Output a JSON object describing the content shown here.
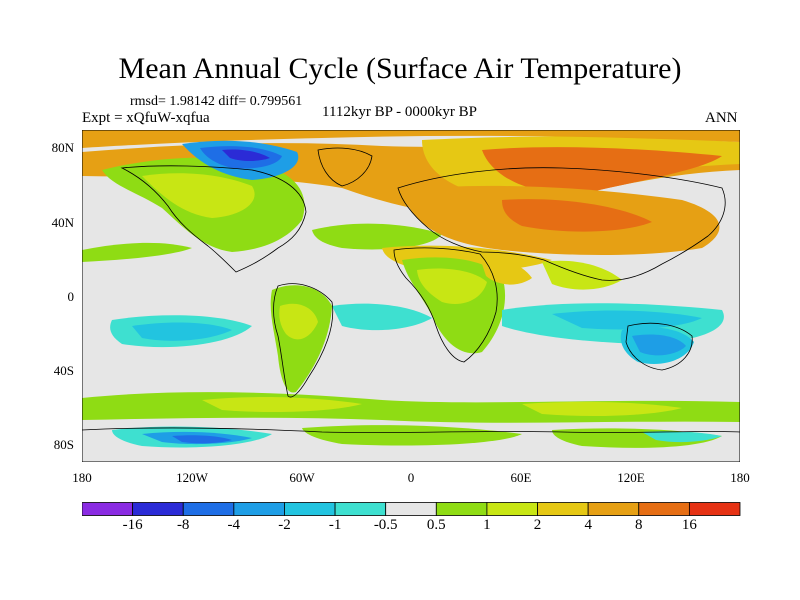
{
  "title": "Mean Annual Cycle (Surface Air Temperature)",
  "stats": "rmsd= 1.98142 diff= 0.799561",
  "experiment": "Expt = xQfuW-xqfua",
  "period": "1112kyr BP - 0000kyr BP",
  "season": "ANN",
  "lat_labels": [
    "80N",
    "40N",
    "0",
    "40S",
    "80S"
  ],
  "lon_labels": [
    "180",
    "120W",
    "60W",
    "0",
    "60E",
    "120E",
    "180"
  ],
  "colorbar": {
    "colors": [
      "#8a2be2",
      "#2b2bd6",
      "#1e6ee6",
      "#1e9ee6",
      "#22c4e0",
      "#3ee0d0",
      "#e6e6e6",
      "#8fdc14",
      "#c8e614",
      "#e6c814",
      "#e6a014",
      "#e66e14",
      "#e63214"
    ],
    "labels": [
      "-16",
      "-8",
      "-4",
      "-2",
      "-1",
      "-0.5",
      "0.5",
      "1",
      "2",
      "4",
      "8",
      "16"
    ]
  }
}
